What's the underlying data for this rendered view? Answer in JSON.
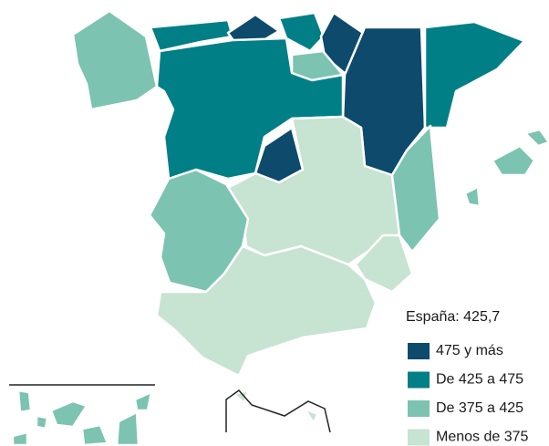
{
  "summary": "España: 425,7",
  "legend": [
    {
      "label": "475 y más",
      "color": "#0d4a6b"
    },
    {
      "label": "De 425 a 475",
      "color": "#007f86"
    },
    {
      "label": "De 375 a 425",
      "color": "#7cc3b1"
    },
    {
      "label": "Menos de 375",
      "color": "#c7e3d2"
    }
  ]
}
